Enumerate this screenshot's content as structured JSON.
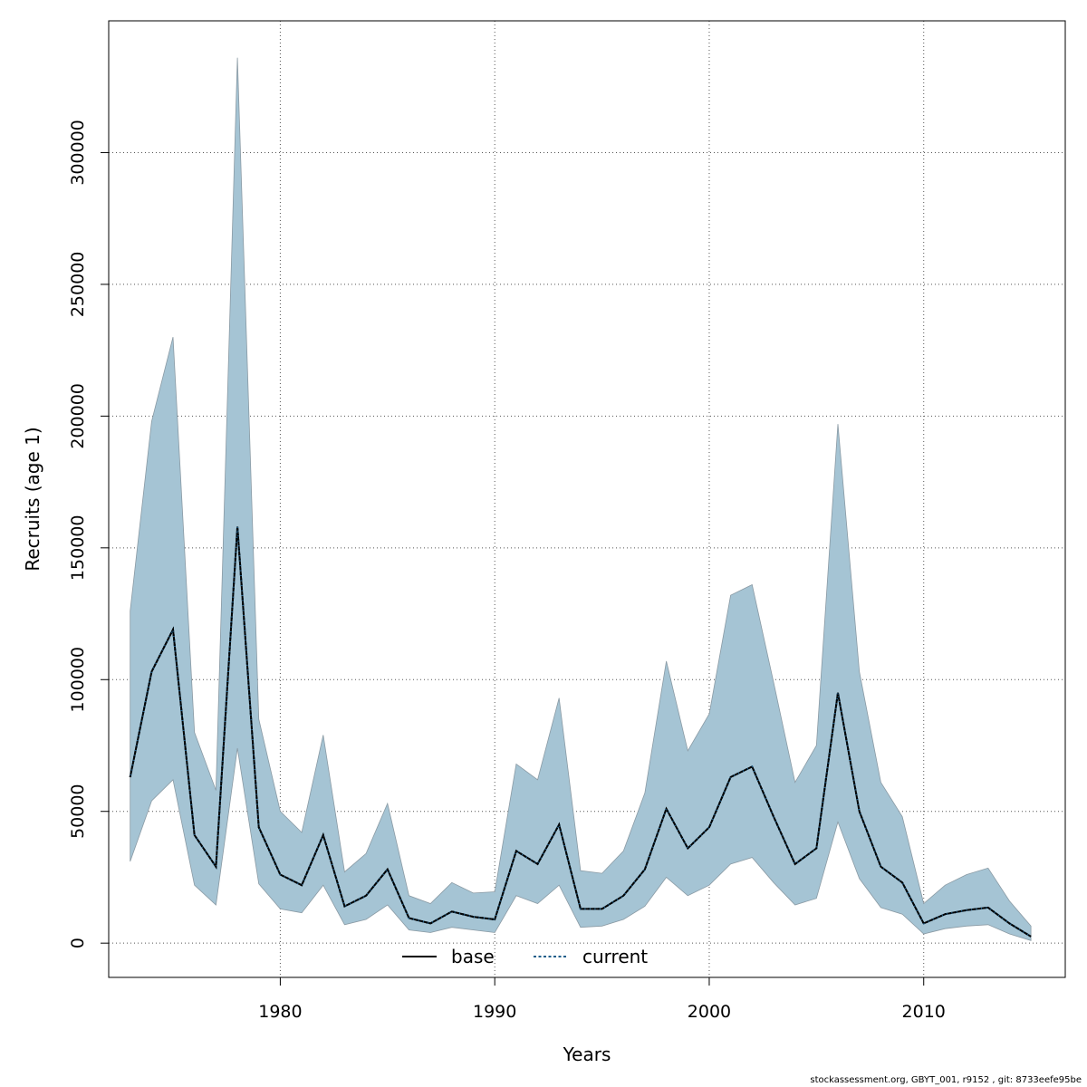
{
  "footnote": "stockassessment.org, GBYT_001, r9152 , git: 8733eefe95be",
  "colors": {
    "band": "#a5c4d4",
    "band_edge": "#8a9aa4",
    "current_line": "#1f5f8b"
  },
  "chart_data": {
    "type": "area",
    "xlabel": "Years",
    "ylabel": "Recruits (age 1)",
    "xlim": [
      1972,
      2016.6
    ],
    "ylim": [
      -13000,
      350000
    ],
    "x_ticks": [
      1980,
      1990,
      2000,
      2010
    ],
    "y_ticks": [
      0,
      50000,
      100000,
      150000,
      200000,
      250000,
      300000
    ],
    "y_tick_labels": [
      "0",
      "50000",
      "100000",
      "150000",
      "200000",
      "250000",
      "300000"
    ],
    "grid": true,
    "legend": {
      "placement": "bottom-center",
      "entries": [
        "base",
        "current"
      ]
    },
    "x": [
      1973,
      1974,
      1975,
      1976,
      1977,
      1978,
      1979,
      1980,
      1981,
      1982,
      1983,
      1984,
      1985,
      1986,
      1987,
      1988,
      1989,
      1990,
      1991,
      1992,
      1993,
      1994,
      1995,
      1996,
      1997,
      1998,
      1999,
      2000,
      2001,
      2002,
      2003,
      2004,
      2005,
      2006,
      2007,
      2008,
      2009,
      2010,
      2011,
      2012,
      2013,
      2014,
      2015
    ],
    "series": [
      {
        "name": "base",
        "values": [
          63000,
          103000,
          119000,
          41000,
          29000,
          158000,
          44000,
          26000,
          22000,
          41000,
          14000,
          18000,
          28000,
          9500,
          7500,
          12000,
          10000,
          9000,
          35000,
          30000,
          45000,
          13000,
          13000,
          18000,
          28000,
          51000,
          36000,
          44000,
          63000,
          67000,
          48000,
          30000,
          36000,
          95000,
          50000,
          29000,
          23000,
          7500,
          11000,
          12500,
          13500,
          7500,
          2500
        ]
      },
      {
        "name": "current",
        "values": [
          63000,
          103000,
          119000,
          41000,
          29000,
          158000,
          44000,
          26000,
          22000,
          41000,
          14000,
          18000,
          28000,
          9500,
          7500,
          12000,
          10000,
          9000,
          35000,
          30000,
          45000,
          13000,
          13000,
          18000,
          28000,
          51000,
          36000,
          44000,
          63000,
          67000,
          48000,
          30000,
          36000,
          95000,
          50000,
          29000,
          23000,
          7500,
          11000,
          12500,
          13500,
          7500,
          2500
        ]
      }
    ],
    "band_upper": [
      126000,
      198000,
      230000,
      80000,
      58000,
      336000,
      85000,
      50000,
      42000,
      79000,
      27000,
      34000,
      53000,
      18000,
      15000,
      23000,
      19000,
      19500,
      68000,
      62000,
      93000,
      27500,
      26500,
      35000,
      57000,
      107000,
      73000,
      87000,
      132000,
      136000,
      99000,
      61000,
      75000,
      197000,
      103000,
      61000,
      48000,
      15000,
      22000,
      26000,
      28500,
      16000,
      6500
    ],
    "band_lower": [
      31000,
      54000,
      62000,
      22000,
      14500,
      74000,
      22500,
      13000,
      11500,
      22000,
      7000,
      9000,
      14500,
      5000,
      4000,
      6000,
      5000,
      4000,
      18000,
      15000,
      22000,
      6000,
      6500,
      9000,
      14000,
      25000,
      18000,
      22000,
      30000,
      32500,
      23000,
      14500,
      17000,
      46000,
      24500,
      13500,
      11000,
      3500,
      5500,
      6500,
      7000,
      3500,
      1000
    ]
  }
}
